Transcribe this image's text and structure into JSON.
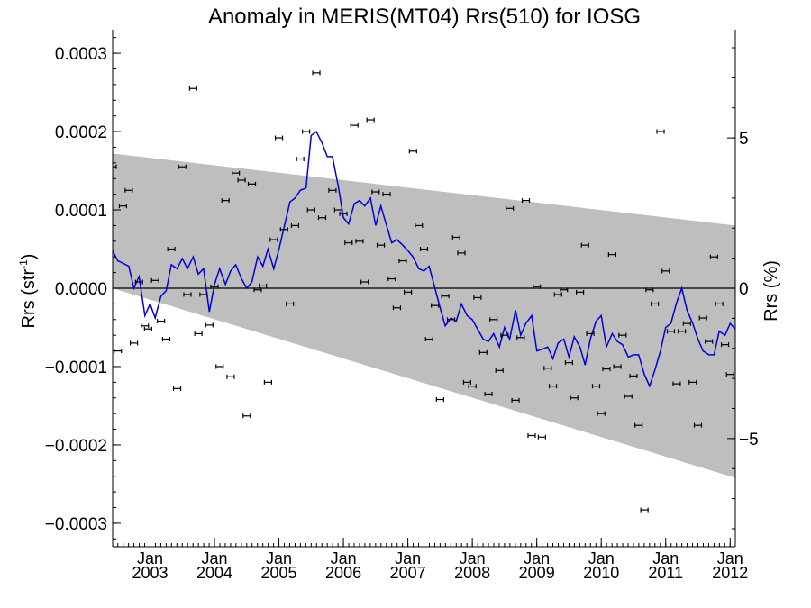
{
  "chart_data": {
    "type": "scatter",
    "title": "Anomaly in MERIS(MT04) Rrs(510) for IOSG",
    "ylabel_left": "Rrs (str",
    "ylabel_left_sup": "-1",
    "ylabel_left_end": ")",
    "ylabel_right": "Rrs (%)",
    "xlim": [
      2002.42,
      2012.08
    ],
    "ylim": [
      -0.00033,
      0.00033
    ],
    "y2lim": [
      -8.6,
      8.6
    ],
    "grid": false,
    "x_month_labels": [
      {
        "x": 2003.0,
        "month": "Jan",
        "year": "2003"
      },
      {
        "x": 2004.0,
        "month": "Jan",
        "year": "2004"
      },
      {
        "x": 2005.0,
        "month": "Jan",
        "year": "2005"
      },
      {
        "x": 2006.0,
        "month": "Jan",
        "year": "2006"
      },
      {
        "x": 2007.0,
        "month": "Jan",
        "year": "2007"
      },
      {
        "x": 2008.0,
        "month": "Jan",
        "year": "2008"
      },
      {
        "x": 2009.0,
        "month": "Jan",
        "year": "2009"
      },
      {
        "x": 2010.0,
        "month": "Jan",
        "year": "2010"
      },
      {
        "x": 2011.0,
        "month": "Jan",
        "year": "2011"
      },
      {
        "x": 2012.0,
        "month": "Jan",
        "year": "2012"
      }
    ],
    "y_ticks_left": [
      {
        "v": 0.0003,
        "label": "0.0003"
      },
      {
        "v": 0.0002,
        "label": "0.0002"
      },
      {
        "v": 0.0001,
        "label": "0.0001"
      },
      {
        "v": 0.0,
        "label": "0.0000"
      },
      {
        "v": -0.0001,
        "label": "−0.0001"
      },
      {
        "v": -0.0002,
        "label": "−0.0002"
      },
      {
        "v": -0.0003,
        "label": "−0.0003"
      }
    ],
    "y_ticks_right": [
      {
        "v": 5,
        "label": "5"
      },
      {
        "v": 0,
        "label": "0"
      },
      {
        "v": -5,
        "label": "−5"
      }
    ],
    "band": {
      "color": "#bebebe",
      "upper": [
        [
          2002.42,
          0.000172
        ],
        [
          2012.08,
          8e-05
        ]
      ],
      "lower": [
        [
          2002.42,
          0.0
        ],
        [
          2012.08,
          -0.000242
        ]
      ]
    },
    "zero_line": 0.0,
    "line_series": {
      "color": "#0000dd",
      "x": [
        2002.42,
        2002.5,
        2002.58,
        2002.67,
        2002.75,
        2002.83,
        2002.92,
        2003.0,
        2003.08,
        2003.17,
        2003.25,
        2003.33,
        2003.42,
        2003.5,
        2003.58,
        2003.67,
        2003.75,
        2003.83,
        2003.92,
        2004.0,
        2004.08,
        2004.17,
        2004.25,
        2004.33,
        2004.42,
        2004.5,
        2004.58,
        2004.67,
        2004.75,
        2004.83,
        2004.92,
        2005.0,
        2005.08,
        2005.17,
        2005.25,
        2005.33,
        2005.42,
        2005.5,
        2005.58,
        2005.67,
        2005.75,
        2005.83,
        2005.92,
        2006.0,
        2006.08,
        2006.17,
        2006.25,
        2006.33,
        2006.42,
        2006.5,
        2006.58,
        2006.67,
        2006.75,
        2006.83,
        2006.92,
        2007.0,
        2007.08,
        2007.17,
        2007.25,
        2007.33,
        2007.42,
        2007.5,
        2007.58,
        2007.67,
        2007.75,
        2007.83,
        2007.92,
        2008.0,
        2008.08,
        2008.17,
        2008.25,
        2008.33,
        2008.42,
        2008.5,
        2008.58,
        2008.67,
        2008.75,
        2008.83,
        2008.92,
        2009.0,
        2009.08,
        2009.17,
        2009.25,
        2009.33,
        2009.42,
        2009.5,
        2009.58,
        2009.67,
        2009.75,
        2009.83,
        2009.92,
        2010.0,
        2010.08,
        2010.17,
        2010.25,
        2010.33,
        2010.42,
        2010.5,
        2010.58,
        2010.67,
        2010.75,
        2010.83,
        2010.92,
        2011.0,
        2011.08,
        2011.17,
        2011.25,
        2011.33,
        2011.42,
        2011.5,
        2011.58,
        2011.67,
        2011.75,
        2011.83,
        2011.92,
        2012.0,
        2012.08
      ],
      "y": [
        4.8e-05,
        3.5e-05,
        3.2e-05,
        2.8e-05,
        0.0,
        1.5e-05,
        -3.5e-05,
        -2e-05,
        -3.8e-05,
        -1e-05,
        -3e-06,
        3e-05,
        2.5e-05,
        3.8e-05,
        2.5e-05,
        4e-05,
        1.8e-05,
        2.5e-05,
        -3e-05,
        5e-06,
        2.5e-05,
        5e-06,
        2.2e-05,
        3e-05,
        1.2e-05,
        0.0,
        8e-06,
        4e-05,
        2.8e-05,
        5e-05,
        2.5e-05,
        5e-05,
        7.8e-05,
        0.00011,
        0.000115,
        0.000125,
        0.000128,
        0.000195,
        0.0002,
        0.000185,
        0.000168,
        0.000168,
        0.00013,
        9e-05,
        8.2e-05,
        0.000108,
        0.000112,
        0.000105,
        0.000115,
        8e-05,
        0.000105,
        8e-05,
        5.8e-05,
        6.2e-05,
        5.5e-05,
        4.8e-05,
        4e-05,
        2.5e-05,
        2.2e-05,
        2.8e-05,
        -0.0,
        -2.5e-05,
        -4.8e-05,
        -3.8e-05,
        -4.2e-05,
        -2e-05,
        -3.5e-05,
        -4e-05,
        -5.2e-05,
        -6.5e-05,
        -6.8e-05,
        -5.8e-05,
        -7.5e-05,
        -5e-05,
        -6.5e-05,
        -2.8e-05,
        -6e-05,
        -4.5e-05,
        -3.5e-05,
        -8e-05,
        -7.8e-05,
        -7.5e-05,
        -9e-05,
        -7e-05,
        -6.5e-05,
        -8.8e-05,
        -6.2e-05,
        -7.5e-05,
        -9.8e-05,
        -6.5e-05,
        -4.2e-05,
        -3.5e-05,
        -7.5e-05,
        -5.8e-05,
        -6.8e-05,
        -7.2e-05,
        -8.8e-05,
        -8.5e-05,
        -8.5e-05,
        -0.00011,
        -0.000125,
        -0.000105,
        -8e-05,
        -5e-05,
        -4.5e-05,
        -1.8e-05,
        0.0,
        -2.8e-05,
        -4.5e-05,
        -6.5e-05,
        -8e-05,
        -8.5e-05,
        -8.5e-05,
        -5.5e-05,
        -6e-05,
        -4.5e-05,
        -5.2e-05
      ]
    },
    "scatter_points": [
      [
        2002.42,
        0.000155
      ],
      [
        2002.5,
        -8e-05
      ],
      [
        2002.58,
        0.000105
      ],
      [
        2002.67,
        0.000125
      ],
      [
        2002.75,
        -7e-05
      ],
      [
        2002.83,
        8e-06
      ],
      [
        2002.92,
        -4.8e-05
      ],
      [
        2002.97,
        -5.2e-05
      ],
      [
        2003.08,
        1e-05
      ],
      [
        2003.17,
        -4.2e-05
      ],
      [
        2003.25,
        -6.5e-05
      ],
      [
        2003.33,
        5e-05
      ],
      [
        2003.42,
        -0.000128
      ],
      [
        2003.5,
        0.000155
      ],
      [
        2003.58,
        -8e-06
      ],
      [
        2003.67,
        0.000255
      ],
      [
        2003.75,
        -5.8e-05
      ],
      [
        2003.83,
        -8e-06
      ],
      [
        2003.92,
        -4.7e-05
      ],
      [
        2004.0,
        2e-06
      ],
      [
        2004.08,
        -0.0001
      ],
      [
        2004.17,
        0.000112
      ],
      [
        2004.25,
        -0.000113
      ],
      [
        2004.33,
        0.000147
      ],
      [
        2004.42,
        0.000138
      ],
      [
        2004.5,
        -0.000163
      ],
      [
        2004.58,
        0.000133
      ],
      [
        2004.67,
        -2e-06
      ],
      [
        2004.75,
        3e-06
      ],
      [
        2004.83,
        -0.00012
      ],
      [
        2004.92,
        6.2e-05
      ],
      [
        2005.0,
        0.000192
      ],
      [
        2005.08,
        7.5e-05
      ],
      [
        2005.17,
        -2e-05
      ],
      [
        2005.25,
        8e-05
      ],
      [
        2005.33,
        0.000165
      ],
      [
        2005.42,
        0.0002
      ],
      [
        2005.5,
        0.0001
      ],
      [
        2005.58,
        0.000275
      ],
      [
        2005.67,
        9e-05
      ],
      [
        2005.83,
        0.000125
      ],
      [
        2005.92,
        0.0001
      ],
      [
        2006.0,
        9.5e-05
      ],
      [
        2006.08,
        5.8e-05
      ],
      [
        2006.17,
        0.000208
      ],
      [
        2006.25,
        6e-05
      ],
      [
        2006.33,
        8e-06
      ],
      [
        2006.42,
        0.000215
      ],
      [
        2006.5,
        0.000123
      ],
      [
        2006.58,
        5.5e-05
      ],
      [
        2006.67,
        0.00012
      ],
      [
        2006.75,
        1.2e-05
      ],
      [
        2006.83,
        -2.5e-05
      ],
      [
        2006.92,
        3.5e-05
      ],
      [
        2007.0,
        -5e-06
      ],
      [
        2007.08,
        0.000175
      ],
      [
        2007.17,
        8e-05
      ],
      [
        2007.25,
        5e-05
      ],
      [
        2007.33,
        -6.5e-05
      ],
      [
        2007.42,
        -2.2e-05
      ],
      [
        2007.5,
        -0.000142
      ],
      [
        2007.58,
        -1e-05
      ],
      [
        2007.67,
        -4e-05
      ],
      [
        2007.75,
        6.5e-05
      ],
      [
        2007.83,
        4.5e-05
      ],
      [
        2007.92,
        -0.00012
      ],
      [
        2008.0,
        -0.000125
      ],
      [
        2008.08,
        -1.2e-05
      ],
      [
        2008.17,
        -8.2e-05
      ],
      [
        2008.25,
        -0.000135
      ],
      [
        2008.33,
        -4e-05
      ],
      [
        2008.42,
        -0.000105
      ],
      [
        2008.5,
        -6e-05
      ],
      [
        2008.58,
        0.000102
      ],
      [
        2008.67,
        -0.000143
      ],
      [
        2008.75,
        -6.3e-05
      ],
      [
        2008.83,
        0.000112
      ],
      [
        2008.92,
        -0.000188
      ],
      [
        2009.0,
        2e-06
      ],
      [
        2009.08,
        -0.00019
      ],
      [
        2009.17,
        -0.000102
      ],
      [
        2009.25,
        -0.000125
      ],
      [
        2009.33,
        -8e-06
      ],
      [
        2009.42,
        -2e-06
      ],
      [
        2009.5,
        -9.5e-05
      ],
      [
        2009.58,
        -0.00014
      ],
      [
        2009.67,
        -5e-06
      ],
      [
        2009.75,
        5.5e-05
      ],
      [
        2009.83,
        -5.8e-05
      ],
      [
        2009.92,
        -0.000125
      ],
      [
        2010.0,
        -0.00016
      ],
      [
        2010.08,
        -0.000103
      ],
      [
        2010.17,
        4.3e-05
      ],
      [
        2010.25,
        -0.0001
      ],
      [
        2010.33,
        -6e-05
      ],
      [
        2010.42,
        -0.000138
      ],
      [
        2010.5,
        -0.000112
      ],
      [
        2010.58,
        -0.000175
      ],
      [
        2010.67,
        -0.000283
      ],
      [
        2010.75,
        -2e-06
      ],
      [
        2010.83,
        -2e-05
      ],
      [
        2010.92,
        0.0002
      ],
      [
        2011.0,
        2.2e-05
      ],
      [
        2011.08,
        -5.5e-05
      ],
      [
        2011.17,
        -0.000122
      ],
      [
        2011.25,
        -5.5e-05
      ],
      [
        2011.33,
        -4.5e-05
      ],
      [
        2011.42,
        -0.00012
      ],
      [
        2011.5,
        -0.000175
      ],
      [
        2011.58,
        -3.8e-05
      ],
      [
        2011.67,
        -6.8e-05
      ],
      [
        2011.75,
        4e-05
      ],
      [
        2011.83,
        -2e-05
      ],
      [
        2011.92,
        -7.2e-05
      ],
      [
        2012.0,
        -0.00011
      ]
    ]
  }
}
